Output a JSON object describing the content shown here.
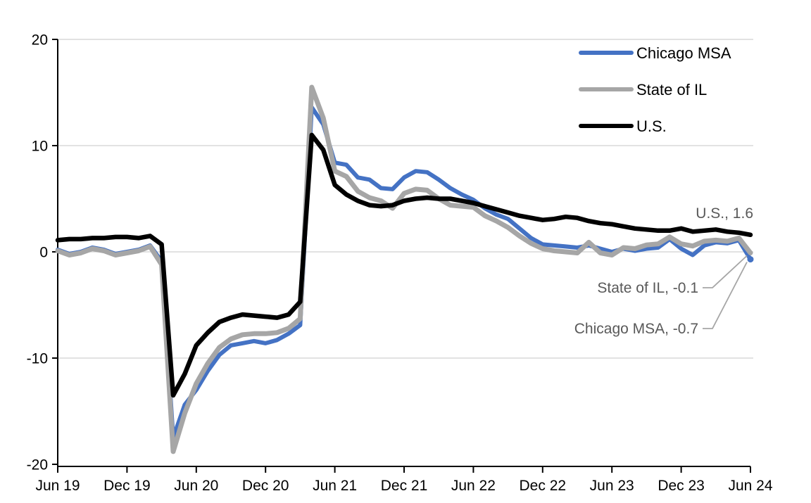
{
  "page": {
    "background": "#FFFFFF"
  },
  "chart_data": {
    "type": "line",
    "title": "",
    "xlabel": "",
    "ylabel": "",
    "ylim": [
      -20,
      20
    ],
    "y_ticks": [
      20,
      10,
      0,
      -10,
      -20
    ],
    "x_tick_labels": [
      "Jun 19",
      "Dec 19",
      "Jun 20",
      "Dec 20",
      "Jun 21",
      "Dec 21",
      "Jun 22",
      "Dec 22",
      "Jun 23",
      "Dec 23",
      "Jun 24"
    ],
    "x_ticks_every": 6,
    "grid": "horizontal",
    "gridline_color": "#D9D9D9",
    "axis_color": "#000000",
    "legend_position": "top-right-inside",
    "annotation_color": "#595959",
    "leader_color": "#A6A6A6",
    "months": [
      "Jun-19",
      "Jul-19",
      "Aug-19",
      "Sep-19",
      "Oct-19",
      "Nov-19",
      "Dec-19",
      "Jan-20",
      "Feb-20",
      "Mar-20",
      "Apr-20",
      "May-20",
      "Jun-20",
      "Jul-20",
      "Aug-20",
      "Sep-20",
      "Oct-20",
      "Nov-20",
      "Dec-20",
      "Jan-21",
      "Feb-21",
      "Mar-21",
      "Apr-21",
      "May-21",
      "Jun-21",
      "Jul-21",
      "Aug-21",
      "Sep-21",
      "Oct-21",
      "Nov-21",
      "Dec-21",
      "Jan-22",
      "Feb-22",
      "Mar-22",
      "Apr-22",
      "May-22",
      "Jun-22",
      "Jul-22",
      "Aug-22",
      "Sep-22",
      "Oct-22",
      "Nov-22",
      "Dec-22",
      "Jan-23",
      "Feb-23",
      "Mar-23",
      "Apr-23",
      "May-23",
      "Jun-23",
      "Jul-23",
      "Aug-23",
      "Sep-23",
      "Oct-23",
      "Nov-23",
      "Dec-23",
      "Jan-24",
      "Feb-24",
      "Mar-24",
      "Apr-24",
      "May-24",
      "Jun-24"
    ],
    "series": [
      {
        "name": "Chicago MSA",
        "color": "#4472C4",
        "stroke_width": 6,
        "end_marker": true,
        "values": [
          0.2,
          -0.2,
          0.0,
          0.4,
          0.2,
          -0.2,
          0.0,
          0.2,
          0.6,
          -0.9,
          -17.5,
          -14.4,
          -13.0,
          -11.2,
          -9.7,
          -8.8,
          -8.6,
          -8.4,
          -8.6,
          -8.3,
          -7.7,
          -6.9,
          13.6,
          12.0,
          8.4,
          8.2,
          7.0,
          6.8,
          6.0,
          5.9,
          7.0,
          7.6,
          7.5,
          6.8,
          6.0,
          5.4,
          4.9,
          4.1,
          3.5,
          3.1,
          2.2,
          1.3,
          0.7,
          0.6,
          0.5,
          0.4,
          0.6,
          0.3,
          0.0,
          0.3,
          0.1,
          0.3,
          0.4,
          1.2,
          0.3,
          -0.3,
          0.6,
          0.9,
          0.8,
          1.1,
          -0.7
        ]
      },
      {
        "name": "State of IL",
        "color": "#A6A6A6",
        "stroke_width": 7,
        "end_marker": false,
        "values": [
          0.1,
          -0.3,
          -0.1,
          0.3,
          0.1,
          -0.3,
          -0.1,
          0.1,
          0.5,
          -1.2,
          -18.8,
          -15.2,
          -12.4,
          -10.5,
          -9.0,
          -8.2,
          -7.8,
          -7.7,
          -7.7,
          -7.6,
          -7.2,
          -6.3,
          15.5,
          12.6,
          7.6,
          7.1,
          5.7,
          5.1,
          4.8,
          4.1,
          5.5,
          5.9,
          5.8,
          5.0,
          4.4,
          4.3,
          4.2,
          3.4,
          2.9,
          2.3,
          1.5,
          0.8,
          0.3,
          0.1,
          0.0,
          -0.1,
          0.9,
          -0.1,
          -0.3,
          0.4,
          0.3,
          0.65,
          0.75,
          1.4,
          0.75,
          0.55,
          1.0,
          1.1,
          1.0,
          1.3,
          -0.1
        ]
      },
      {
        "name": "U.S.",
        "color": "#000000",
        "stroke_width": 6.5,
        "end_marker": false,
        "values": [
          1.1,
          1.2,
          1.2,
          1.3,
          1.3,
          1.4,
          1.4,
          1.3,
          1.5,
          0.7,
          -13.5,
          -11.5,
          -8.8,
          -7.6,
          -6.6,
          -6.2,
          -5.9,
          -6.0,
          -6.1,
          -6.2,
          -5.9,
          -4.7,
          11.0,
          9.6,
          6.3,
          5.4,
          4.8,
          4.4,
          4.3,
          4.4,
          4.8,
          5.0,
          5.1,
          5.0,
          5.0,
          4.8,
          4.6,
          4.3,
          4.0,
          3.7,
          3.4,
          3.2,
          3.0,
          3.1,
          3.3,
          3.2,
          2.9,
          2.7,
          2.6,
          2.4,
          2.2,
          2.1,
          2.0,
          2.0,
          2.2,
          1.9,
          2.0,
          2.1,
          1.9,
          1.8,
          1.6
        ]
      }
    ],
    "end_labels": [
      {
        "text": "U.S., 1.6",
        "series_index": 2,
        "has_leader": false
      },
      {
        "text": "State of IL, -0.1",
        "series_index": 1,
        "has_leader": true
      },
      {
        "text": "Chicago MSA, -0.7",
        "series_index": 0,
        "has_leader": true
      }
    ]
  },
  "legend": {
    "items": [
      {
        "label": "Chicago MSA",
        "color": "#4472C4"
      },
      {
        "label": "State of IL",
        "color": "#A6A6A6"
      },
      {
        "label": "U.S.",
        "color": "#000000"
      }
    ]
  }
}
